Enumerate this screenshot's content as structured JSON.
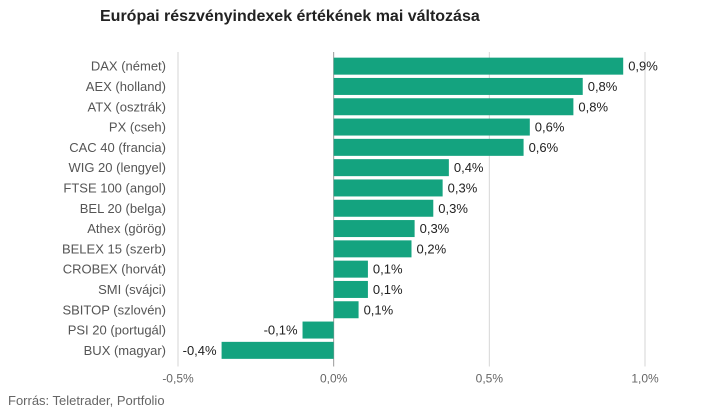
{
  "chart_data": {
    "type": "bar",
    "orientation": "horizontal",
    "title": "Európai részvényindexek értékének mai változása",
    "source": "Forrás: Teletrader, Portfolio",
    "categories": [
      "DAX (német)",
      "AEX (holland)",
      "ATX (osztrák)",
      "PX (cseh)",
      "CAC 40 (francia)",
      "WIG 20 (lengyel)",
      "FTSE 100 (angol)",
      "BEL 20 (belga)",
      "Athex (görög)",
      "BELEX 15 (szerb)",
      "CROBEX (horvát)",
      "SMI (svájci)",
      "SBITOP (szlovén)",
      "PSI 20 (portugál)",
      "BUX (magyar)"
    ],
    "values": [
      0.93,
      0.8,
      0.77,
      0.63,
      0.61,
      0.37,
      0.35,
      0.32,
      0.26,
      0.25,
      0.11,
      0.11,
      0.08,
      -0.1,
      -0.36
    ],
    "value_labels": [
      "0,9%",
      "0,8%",
      "0,8%",
      "0,6%",
      "0,6%",
      "0,4%",
      "0,3%",
      "0,3%",
      "0,3%",
      "0,2%",
      "0,1%",
      "0,1%",
      "0,1%",
      "-0,1%",
      "-0,4%"
    ],
    "xlim": [
      -0.5,
      1.0
    ],
    "xticks": [
      -0.5,
      0,
      0.5,
      1.0
    ],
    "xtick_labels": [
      "-0,5%",
      "0,0%",
      "0,5%",
      "1,0%"
    ],
    "grid": true,
    "color": "#14a37f"
  }
}
